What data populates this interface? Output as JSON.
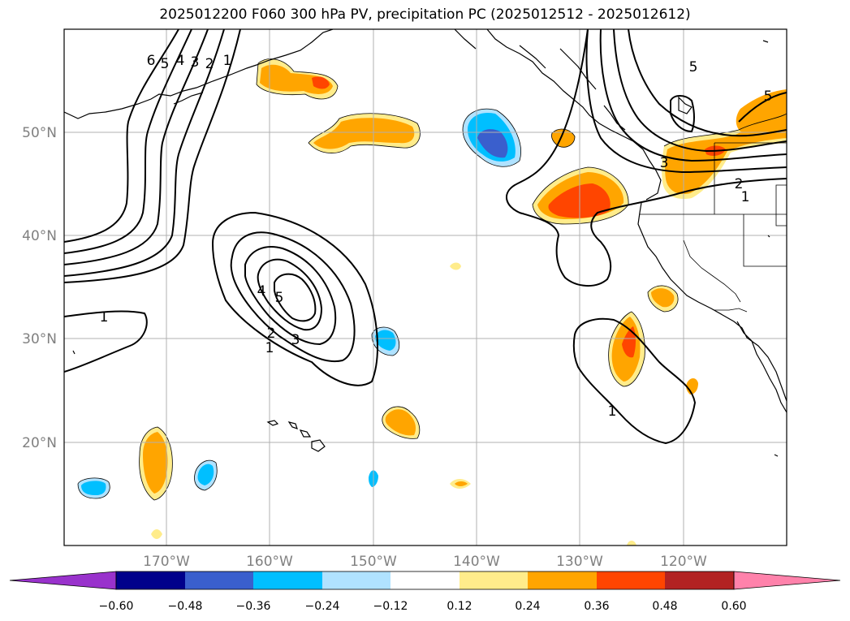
{
  "title": "2025012200 F060 300 hPa PV, precipitation PC (2025012512 - 2025012612)",
  "map": {
    "lon_labels": [
      "170°W",
      "160°W",
      "150°W",
      "140°W",
      "130°W",
      "120°W"
    ],
    "lat_labels": [
      "50°N",
      "40°N",
      "30°N",
      "20°N"
    ],
    "contour_labels": [
      {
        "text": "6"
      },
      {
        "text": "5"
      },
      {
        "text": "4"
      },
      {
        "text": "3"
      },
      {
        "text": "2"
      },
      {
        "text": "1"
      },
      {
        "text": "1"
      },
      {
        "text": "4"
      },
      {
        "text": "5"
      },
      {
        "text": "2"
      },
      {
        "text": "3"
      },
      {
        "text": "1"
      },
      {
        "text": "5"
      },
      {
        "text": "5"
      },
      {
        "text": "3"
      },
      {
        "text": "2"
      },
      {
        "text": "1"
      },
      {
        "text": "1"
      }
    ]
  },
  "colorbar": {
    "ticks": [
      "−0.60",
      "−0.48",
      "−0.36",
      "−0.24",
      "−0.12",
      "0.12",
      "0.24",
      "0.36",
      "0.48",
      "0.60"
    ],
    "colors": [
      "#9932cc",
      "#00008b",
      "#3a5fcd",
      "#00bfff",
      "#b0e2ff",
      "#ffffff",
      "#ffec8b",
      "#ffa500",
      "#ff4500",
      "#b22222",
      "#ff82ab"
    ]
  }
}
